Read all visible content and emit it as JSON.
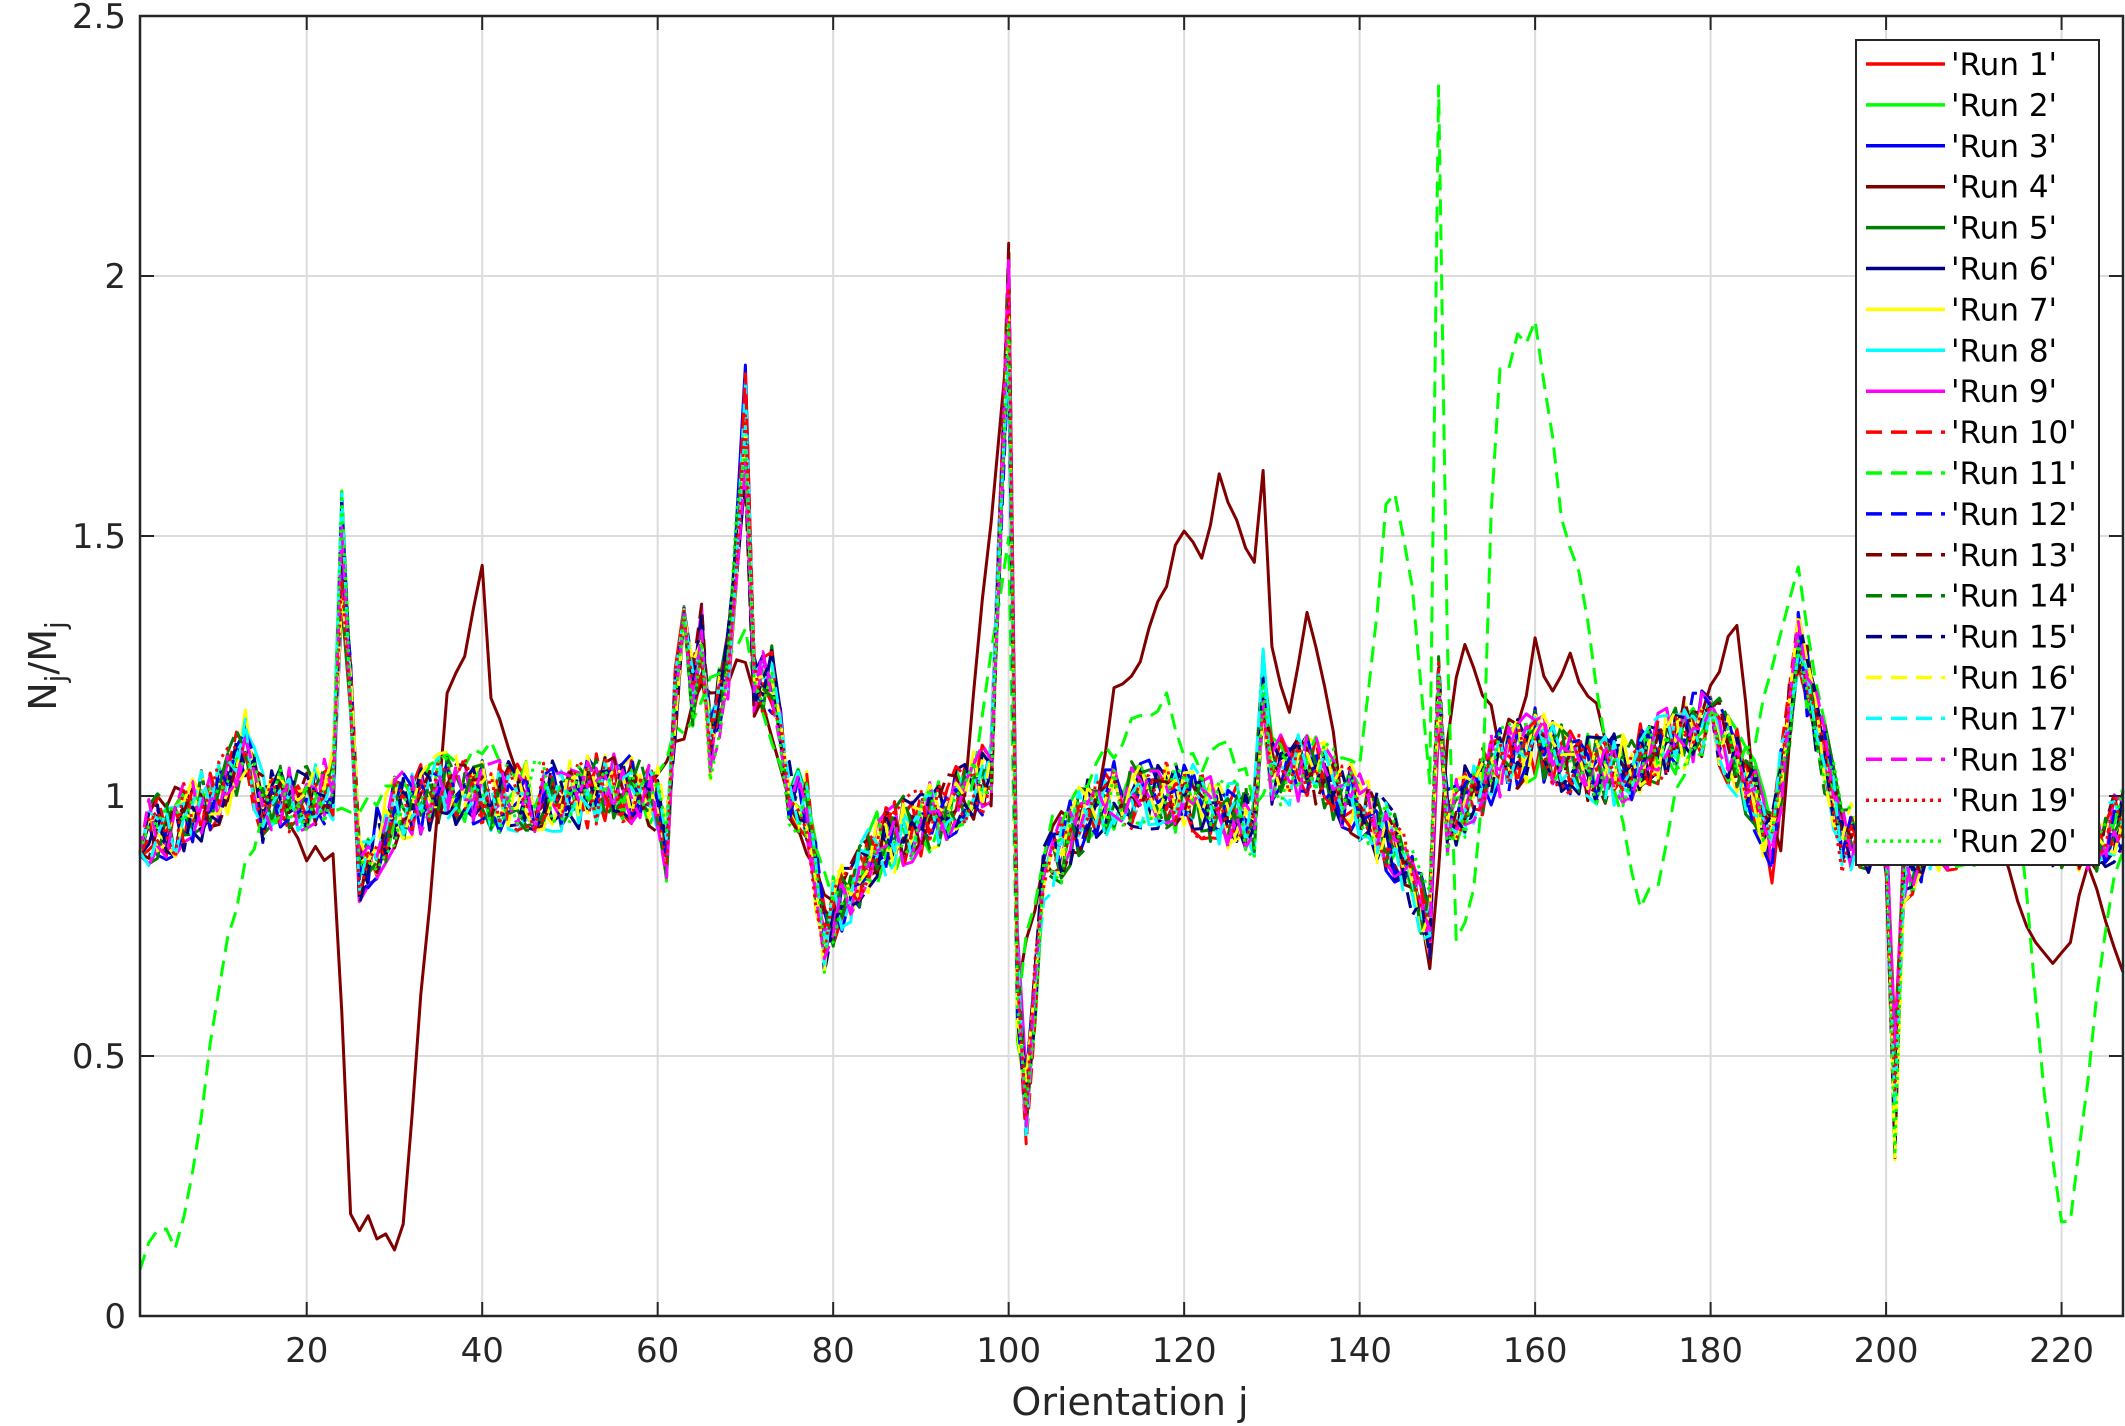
{
  "chart_data": {
    "type": "line",
    "title": "",
    "xlabel": "Orientation j",
    "ylabel_main": "N",
    "ylabel_sub1": "j",
    "ylabel_sep": "/M",
    "ylabel_sub2": "j",
    "xlim": [
      1,
      227
    ],
    "ylim": [
      0,
      2.5
    ],
    "xticks": [
      20,
      40,
      60,
      80,
      100,
      120,
      140,
      160,
      180,
      200,
      220
    ],
    "yticks": [
      0,
      0.5,
      1,
      1.5,
      2,
      2.5
    ],
    "ytick_labels": [
      "0",
      "0.5",
      "1",
      "1.5",
      "2",
      "2.5"
    ],
    "grid": true,
    "legend_position": "top-right",
    "baseline": {
      "x": [
        1,
        5,
        10,
        13,
        15,
        20,
        23,
        24,
        25,
        26,
        30,
        36,
        40,
        45,
        50,
        55,
        60,
        61,
        63,
        64,
        65,
        66,
        68,
        70,
        71,
        73,
        75,
        77,
        79,
        80,
        82,
        85,
        90,
        95,
        98,
        100,
        101,
        102,
        104,
        108,
        112,
        120,
        128,
        129,
        130,
        135,
        140,
        145,
        148,
        149,
        150,
        155,
        160,
        165,
        170,
        175,
        180,
        185,
        187,
        190,
        195,
        200,
        201,
        202,
        205,
        210,
        215,
        220,
        225,
        227
      ],
      "y": [
        0.92,
        0.95,
        1.0,
        1.1,
        0.98,
        1.0,
        1.02,
        1.48,
        1.2,
        0.85,
        0.97,
        1.02,
        1.0,
        1.0,
        1.0,
        1.02,
        1.0,
        0.9,
        1.45,
        1.2,
        1.3,
        1.1,
        1.25,
        1.72,
        1.2,
        1.22,
        1.0,
        0.98,
        0.72,
        0.78,
        0.82,
        0.9,
        0.95,
        1.0,
        1.05,
        1.95,
        0.62,
        0.4,
        0.85,
        0.95,
        1.0,
        1.0,
        0.95,
        1.22,
        1.05,
        1.05,
        0.98,
        0.88,
        0.75,
        1.2,
        0.95,
        1.05,
        1.1,
        1.05,
        1.05,
        1.1,
        1.15,
        1.0,
        0.9,
        1.3,
        0.92,
        0.92,
        0.42,
        0.85,
        0.92,
        0.93,
        0.95,
        0.93,
        0.92,
        0.95
      ]
    },
    "series": [
      {
        "name": "'Run 1'",
        "color": "#ff0000",
        "dash": "solid",
        "seed": 11
      },
      {
        "name": "'Run 2'",
        "color": "#00ff00",
        "dash": "solid",
        "seed": 23
      },
      {
        "name": "'Run 3'",
        "color": "#0000ff",
        "dash": "solid",
        "seed": 37
      },
      {
        "name": "'Run 4'",
        "color": "#800000",
        "dash": "solid",
        "seed": 41,
        "override": {
          "x": [
            1,
            3,
            6,
            10,
            13,
            16,
            20,
            22,
            23,
            24,
            25,
            26,
            27,
            28,
            30,
            31,
            33,
            36,
            38,
            40,
            41,
            45,
            50,
            55,
            60,
            65,
            70,
            75,
            80,
            85,
            90,
            95,
            100,
            101,
            102,
            105,
            110,
            112,
            115,
            118,
            120,
            122,
            124,
            126,
            127,
            128,
            129,
            130,
            132,
            134,
            136,
            138,
            140,
            143,
            146,
            147,
            148,
            150,
            152,
            154,
            156,
            158,
            160,
            162,
            164,
            166,
            170,
            175,
            180,
            183,
            185,
            188,
            190,
            195,
            200,
            205,
            210,
            213,
            215,
            217,
            219,
            221,
            223,
            225,
            227
          ],
          "y": [
            0.9,
            0.98,
            1.02,
            1.0,
            1.1,
            0.95,
            0.9,
            0.87,
            0.87,
            0.6,
            0.18,
            0.17,
            0.19,
            0.17,
            0.13,
            0.18,
            0.6,
            1.2,
            1.25,
            1.44,
            1.2,
            0.98,
            1.0,
            1.0,
            1.02,
            1.2,
            1.25,
            1.0,
            0.78,
            0.88,
            0.92,
            1.0,
            1.9,
            0.6,
            0.7,
            0.95,
            1.0,
            1.2,
            1.25,
            1.4,
            1.53,
            1.45,
            1.6,
            1.55,
            1.5,
            1.45,
            1.65,
            1.3,
            1.15,
            1.35,
            1.2,
            1.0,
            1.0,
            0.88,
            0.82,
            0.75,
            0.65,
            1.1,
            1.31,
            1.2,
            1.1,
            1.15,
            1.28,
            1.2,
            1.28,
            1.2,
            1.05,
            1.1,
            1.2,
            1.35,
            1.0,
            0.9,
            1.3,
            0.95,
            0.95,
            0.95,
            0.9,
            0.92,
            0.82,
            0.72,
            0.68,
            0.72,
            0.85,
            0.75,
            0.65
          ]
        }
      },
      {
        "name": "'Run 5'",
        "color": "#008000",
        "dash": "solid",
        "seed": 53
      },
      {
        "name": "'Run 6'",
        "color": "#000080",
        "dash": "solid",
        "seed": 67
      },
      {
        "name": "'Run 7'",
        "color": "#ffff00",
        "dash": "solid",
        "seed": 71
      },
      {
        "name": "'Run 8'",
        "color": "#00ffff",
        "dash": "solid",
        "seed": 83
      },
      {
        "name": "'Run 9'",
        "color": "#ff00ff",
        "dash": "solid",
        "seed": 97
      },
      {
        "name": "'Run 10'",
        "color": "#ff0000",
        "dash": "dashed",
        "seed": 101
      },
      {
        "name": "'Run 11'",
        "color": "#00ff00",
        "dash": "dashed",
        "seed": 113,
        "override": {
          "x": [
            1,
            3,
            5,
            7,
            9,
            10,
            11,
            12,
            13,
            14,
            15,
            18,
            20,
            25,
            30,
            35,
            40,
            45,
            50,
            55,
            60,
            65,
            70,
            75,
            80,
            85,
            90,
            95,
            100,
            101,
            102,
            105,
            110,
            115,
            118,
            120,
            122,
            125,
            128,
            130,
            135,
            140,
            142,
            143,
            144,
            146,
            147,
            148,
            149,
            150,
            151,
            153,
            154,
            155,
            156,
            158,
            160,
            161,
            162,
            163,
            165,
            167,
            170,
            172,
            174,
            176,
            178,
            180,
            185,
            190,
            195,
            200,
            201,
            202,
            205,
            210,
            213,
            215,
            216,
            217,
            218,
            219,
            220,
            221,
            223,
            225,
            227
          ],
          "y": [
            0.1,
            0.18,
            0.12,
            0.3,
            0.5,
            0.65,
            0.75,
            0.8,
            0.85,
            0.9,
            0.95,
            1.0,
            1.0,
            0.98,
            1.0,
            1.05,
            1.1,
            1.0,
            1.0,
            1.0,
            1.05,
            1.2,
            1.3,
            1.0,
            0.8,
            0.85,
            0.9,
            0.95,
            1.5,
            0.6,
            0.75,
            0.95,
            1.05,
            1.15,
            1.18,
            1.1,
            1.05,
            1.1,
            1.0,
            1.05,
            1.1,
            1.05,
            1.35,
            1.55,
            1.58,
            1.4,
            1.2,
            1.0,
            2.36,
            1.3,
            0.72,
            0.8,
            1.0,
            1.55,
            1.8,
            1.88,
            1.9,
            1.82,
            1.7,
            1.55,
            1.45,
            1.2,
            0.95,
            0.8,
            0.82,
            1.0,
            1.1,
            1.15,
            1.1,
            1.45,
            0.9,
            0.9,
            0.45,
            0.85,
            0.92,
            0.95,
            1.0,
            0.95,
            0.8,
            0.6,
            0.45,
            0.3,
            0.17,
            0.2,
            0.45,
            0.75,
            0.9
          ]
        }
      },
      {
        "name": "'Run 12'",
        "color": "#0000ff",
        "dash": "dashed",
        "seed": 127
      },
      {
        "name": "'Run 13'",
        "color": "#800000",
        "dash": "dashed",
        "seed": 131
      },
      {
        "name": "'Run 14'",
        "color": "#008000",
        "dash": "dashed",
        "seed": 139
      },
      {
        "name": "'Run 15'",
        "color": "#000080",
        "dash": "dashed",
        "seed": 149
      },
      {
        "name": "'Run 16'",
        "color": "#ffff00",
        "dash": "dashed",
        "seed": 151
      },
      {
        "name": "'Run 17'",
        "color": "#00ffff",
        "dash": "dashed",
        "seed": 163
      },
      {
        "name": "'Run 18'",
        "color": "#ff00ff",
        "dash": "dashed",
        "seed": 173
      },
      {
        "name": "'Run 19'",
        "color": "#ff0000",
        "dash": "dotted",
        "seed": 181
      },
      {
        "name": "'Run 20'",
        "color": "#00ff00",
        "dash": "dotted",
        "seed": 191
      }
    ]
  }
}
